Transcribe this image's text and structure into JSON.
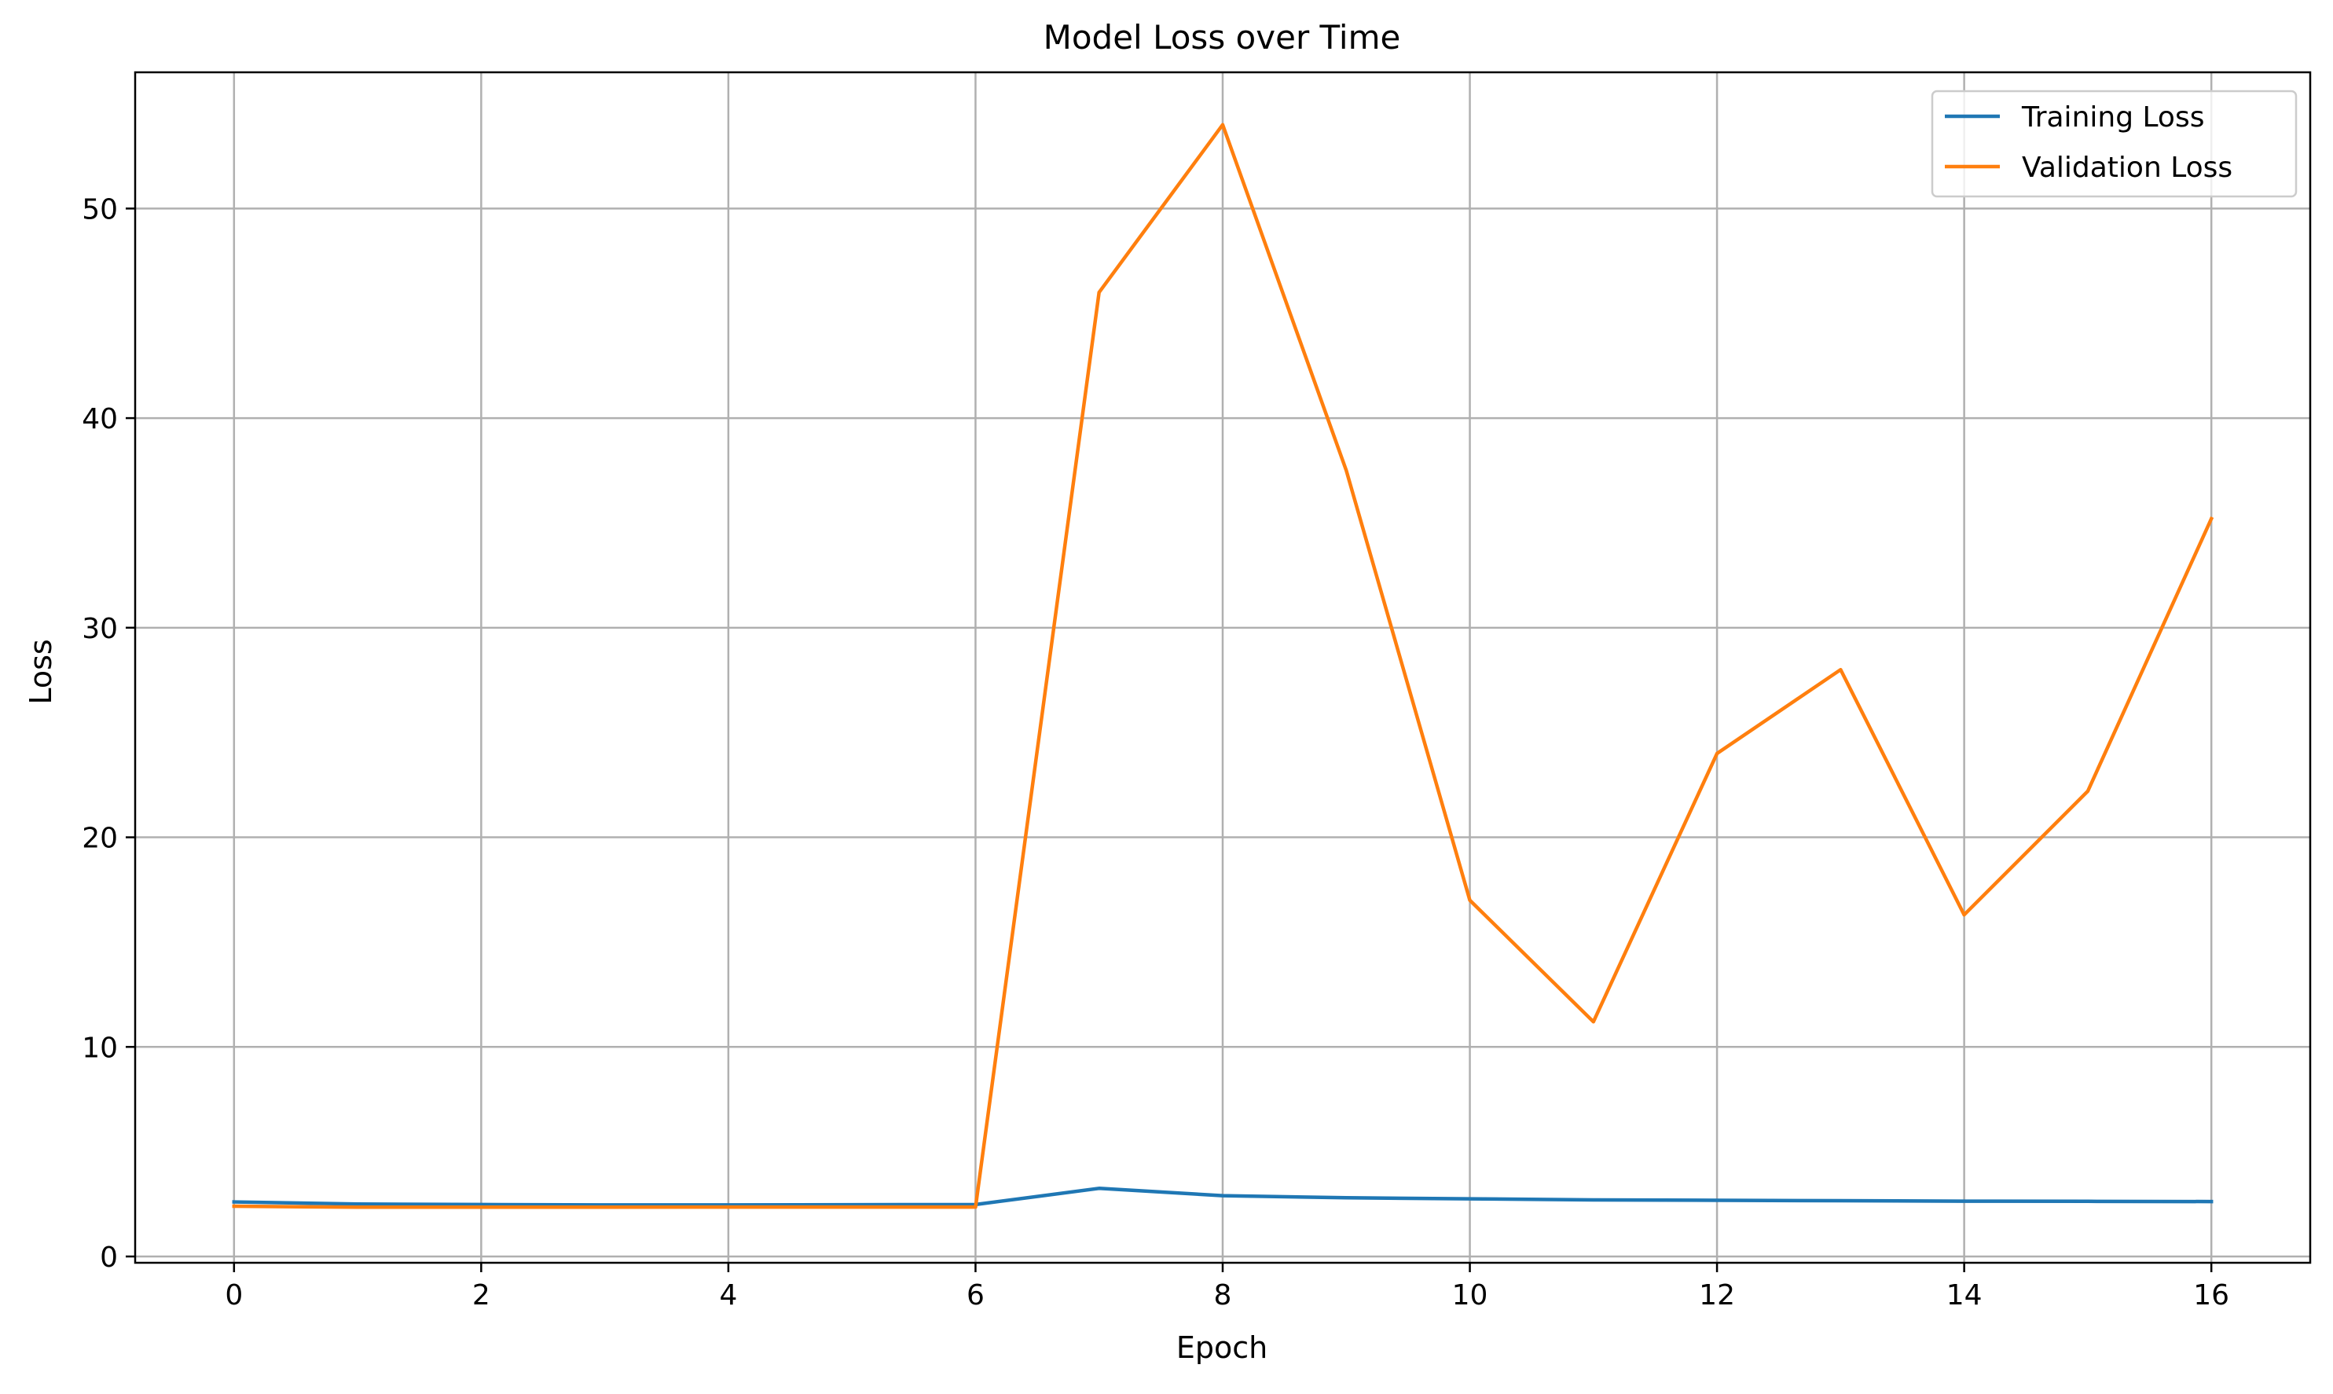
{
  "chart_data": {
    "type": "line",
    "title": "Model Loss over Time",
    "xlabel": "Epoch",
    "ylabel": "Loss",
    "xlim": [
      -0.8,
      16.8
    ],
    "ylim": [
      -0.3,
      56.5
    ],
    "xticks": [
      0,
      2,
      4,
      6,
      8,
      10,
      12,
      14,
      16
    ],
    "yticks": [
      0,
      10,
      20,
      30,
      40,
      50
    ],
    "grid": true,
    "legend_position": "top-right",
    "x": [
      0,
      1,
      2,
      3,
      4,
      5,
      6,
      7,
      8,
      9,
      10,
      11,
      12,
      13,
      14,
      15,
      16
    ],
    "series": [
      {
        "name": "Training Loss",
        "color": "#1f77b4",
        "values": [
          2.6,
          2.5,
          2.48,
          2.46,
          2.46,
          2.47,
          2.48,
          3.25,
          2.9,
          2.8,
          2.75,
          2.7,
          2.68,
          2.66,
          2.64,
          2.63,
          2.62
        ]
      },
      {
        "name": "Validation Loss",
        "color": "#ff7f0e",
        "values": [
          2.4,
          2.35,
          2.35,
          2.35,
          2.36,
          2.36,
          2.36,
          46.0,
          54.0,
          37.5,
          17.0,
          11.2,
          24.0,
          28.0,
          16.3,
          22.2,
          35.2
        ]
      }
    ]
  }
}
